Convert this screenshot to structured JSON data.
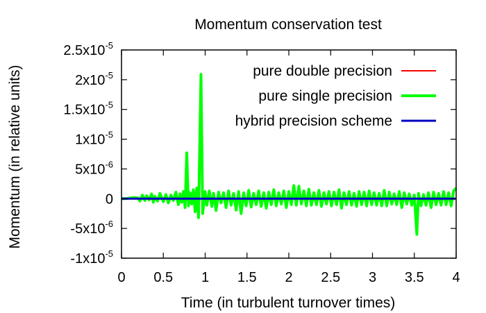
{
  "chart_data": {
    "type": "line",
    "title": "Momentum conservation test",
    "xlabel": "Time (in turbulent turnover times)",
    "ylabel": "Momentum (in relative units)",
    "xlim": [
      0,
      4
    ],
    "ylim": [
      -1e-05,
      2.5e-05
    ],
    "grid": false,
    "legend_position": "top-right",
    "x_ticks": [
      {
        "value": 0,
        "label": "0"
      },
      {
        "value": 0.5,
        "label": "0.5"
      },
      {
        "value": 1,
        "label": "1"
      },
      {
        "value": 1.5,
        "label": "1.5"
      },
      {
        "value": 2,
        "label": "2"
      },
      {
        "value": 2.5,
        "label": "2.5"
      },
      {
        "value": 3,
        "label": "3"
      },
      {
        "value": 3.5,
        "label": "3.5"
      },
      {
        "value": 4,
        "label": "4"
      }
    ],
    "y_ticks": [
      {
        "value": 2.5e-05,
        "mantissa": "2.5x10",
        "exponent": "-5"
      },
      {
        "value": 2e-05,
        "mantissa": "2x10",
        "exponent": "-5"
      },
      {
        "value": 1.5e-05,
        "mantissa": "1.5x10",
        "exponent": "-5"
      },
      {
        "value": 1e-05,
        "mantissa": "1x10",
        "exponent": "-5"
      },
      {
        "value": 5e-06,
        "mantissa": "5x10",
        "exponent": "-6"
      },
      {
        "value": 0,
        "mantissa": "0",
        "exponent": ""
      },
      {
        "value": -5e-06,
        "mantissa": "-5x10",
        "exponent": "-6"
      },
      {
        "value": -1e-05,
        "mantissa": "-1x10",
        "exponent": "-5"
      }
    ],
    "series": [
      {
        "name": "pure double precision",
        "color": "#ff0000",
        "points": [
          [
            0,
            0
          ],
          [
            4,
            0
          ]
        ]
      },
      {
        "name": "pure single precision",
        "color": "#00ff00",
        "points": [
          [
            0,
            0
          ],
          [
            0.05,
            0
          ],
          [
            0.1,
            1e-07
          ],
          [
            0.15,
            2e-07
          ],
          [
            0.2,
            1e-07
          ],
          [
            0.22,
            -4e-07
          ],
          [
            0.25,
            6e-07
          ],
          [
            0.28,
            -3e-07
          ],
          [
            0.3,
            5e-07
          ],
          [
            0.33,
            -2e-07
          ],
          [
            0.36,
            8e-07
          ],
          [
            0.38,
            -6e-07
          ],
          [
            0.4,
            4e-07
          ],
          [
            0.43,
            -4e-07
          ],
          [
            0.46,
            9e-07
          ],
          [
            0.5,
            -5e-07
          ],
          [
            0.53,
            7e-07
          ],
          [
            0.56,
            -7e-07
          ],
          [
            0.59,
            6e-07
          ],
          [
            0.62,
            -3e-07
          ],
          [
            0.65,
            1.1e-06
          ],
          [
            0.68,
            -1e-06
          ],
          [
            0.7,
            8e-07
          ],
          [
            0.72,
            -6e-07
          ],
          [
            0.74,
            1.2e-06
          ],
          [
            0.76,
            -1.5e-06
          ],
          [
            0.78,
            7.7e-06
          ],
          [
            0.8,
            -1.2e-06
          ],
          [
            0.82,
            1e-06
          ],
          [
            0.84,
            -9e-07
          ],
          [
            0.86,
            1.5e-06
          ],
          [
            0.88,
            -2.2e-06
          ],
          [
            0.9,
            1.8e-06
          ],
          [
            0.92,
            -3.2e-06
          ],
          [
            0.95,
            2.09e-05
          ],
          [
            0.97,
            -2.5e-06
          ],
          [
            1.0,
            1.2e-06
          ],
          [
            1.02,
            -1.1e-06
          ],
          [
            1.05,
            1.3e-06
          ],
          [
            1.08,
            -1.3e-06
          ],
          [
            1.1,
            9e-07
          ],
          [
            1.13,
            -2e-06
          ],
          [
            1.16,
            1.1e-06
          ],
          [
            1.19,
            -7e-07
          ],
          [
            1.22,
            1e-06
          ],
          [
            1.25,
            -1.5e-06
          ],
          [
            1.28,
            1.3e-06
          ],
          [
            1.31,
            -1.1e-06
          ],
          [
            1.34,
            9e-07
          ],
          [
            1.37,
            -1.9e-06
          ],
          [
            1.4,
            1.2e-06
          ],
          [
            1.43,
            -2.5e-06
          ],
          [
            1.46,
            1e-06
          ],
          [
            1.49,
            -1.2e-06
          ],
          [
            1.52,
            1.4e-06
          ],
          [
            1.55,
            -1.4e-06
          ],
          [
            1.58,
            9e-07
          ],
          [
            1.61,
            -1e-06
          ],
          [
            1.64,
            1.3e-06
          ],
          [
            1.67,
            -1.3e-06
          ],
          [
            1.7,
            1e-06
          ],
          [
            1.73,
            -1.6e-06
          ],
          [
            1.76,
            1.1e-06
          ],
          [
            1.79,
            -1e-06
          ],
          [
            1.82,
            1.5e-06
          ],
          [
            1.85,
            -1.2e-06
          ],
          [
            1.88,
            1e-06
          ],
          [
            1.91,
            -9e-07
          ],
          [
            1.94,
            1.3e-06
          ],
          [
            1.97,
            -1.5e-06
          ],
          [
            2.0,
            1.2e-06
          ],
          [
            2.03,
            -1e-06
          ],
          [
            2.06,
            2.2e-06
          ],
          [
            2.09,
            -1.1e-06
          ],
          [
            2.12,
            2.1e-06
          ],
          [
            2.15,
            -9e-07
          ],
          [
            2.18,
            1.3e-06
          ],
          [
            2.21,
            -1.2e-06
          ],
          [
            2.24,
            1.6e-06
          ],
          [
            2.27,
            -1.1e-06
          ],
          [
            2.3,
            1e-06
          ],
          [
            2.33,
            -1e-06
          ],
          [
            2.36,
            1.4e-06
          ],
          [
            2.39,
            -1.3e-06
          ],
          [
            2.42,
            1e-06
          ],
          [
            2.45,
            -9e-07
          ],
          [
            2.48,
            1.2e-06
          ],
          [
            2.51,
            -1.2e-06
          ],
          [
            2.54,
            1.1e-06
          ],
          [
            2.57,
            -1e-06
          ],
          [
            2.6,
            1.5e-06
          ],
          [
            2.63,
            -1.6e-06
          ],
          [
            2.66,
            1e-06
          ],
          [
            2.69,
            -1e-06
          ],
          [
            2.72,
            1.2e-06
          ],
          [
            2.75,
            -1.1e-06
          ],
          [
            2.78,
            9e-07
          ],
          [
            2.81,
            -1.3e-06
          ],
          [
            2.84,
            1.2e-06
          ],
          [
            2.87,
            -1e-06
          ],
          [
            2.9,
            1.1e-06
          ],
          [
            2.93,
            -1.2e-06
          ],
          [
            2.96,
            1.3e-06
          ],
          [
            2.99,
            -1e-06
          ],
          [
            3.02,
            1e-06
          ],
          [
            3.05,
            -1.1e-06
          ],
          [
            3.08,
            9e-07
          ],
          [
            3.11,
            -1.2e-06
          ],
          [
            3.14,
            1.4e-06
          ],
          [
            3.17,
            -1.2e-06
          ],
          [
            3.2,
            1.1e-06
          ],
          [
            3.23,
            -9e-07
          ],
          [
            3.26,
            8e-07
          ],
          [
            3.29,
            -1e-06
          ],
          [
            3.32,
            1.2e-06
          ],
          [
            3.35,
            -1.5e-06
          ],
          [
            3.38,
            1e-06
          ],
          [
            3.41,
            -9e-07
          ],
          [
            3.44,
            8e-07
          ],
          [
            3.47,
            -1.1e-06
          ],
          [
            3.5,
            6e-07
          ],
          [
            3.53,
            -6e-06
          ],
          [
            3.55,
            9e-07
          ],
          [
            3.58,
            -1.2e-06
          ],
          [
            3.61,
            7e-07
          ],
          [
            3.64,
            -1.1e-06
          ],
          [
            3.67,
            1e-06
          ],
          [
            3.7,
            -1.5e-06
          ],
          [
            3.73,
            1.1e-06
          ],
          [
            3.76,
            -1e-06
          ],
          [
            3.79,
            9e-07
          ],
          [
            3.82,
            -1.1e-06
          ],
          [
            3.85,
            1.2e-06
          ],
          [
            3.88,
            -1e-06
          ],
          [
            3.91,
            1e-06
          ],
          [
            3.94,
            -1.2e-06
          ],
          [
            3.97,
            1.3e-06
          ],
          [
            4.0,
            1.8e-06
          ]
        ]
      },
      {
        "name": "hybrid precision scheme",
        "color": "#0000c0",
        "points": [
          [
            0,
            0
          ],
          [
            4,
            0
          ]
        ]
      }
    ]
  }
}
